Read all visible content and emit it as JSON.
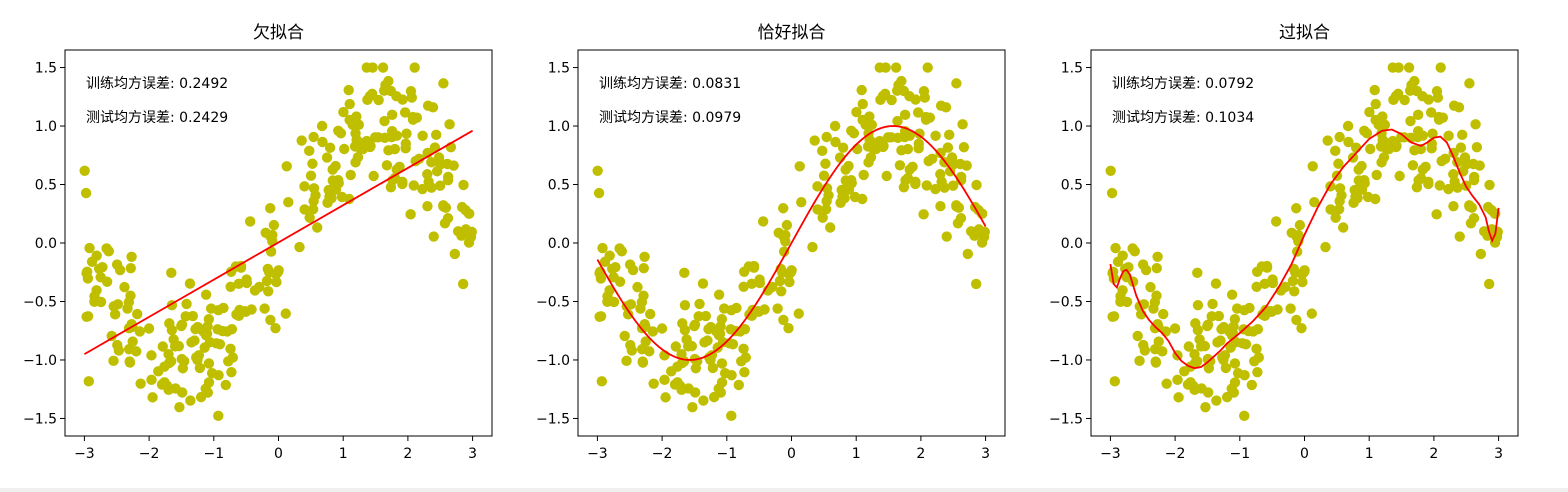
{
  "chart_data": [
    {
      "type": "scatter",
      "title": "欠拟合",
      "xlim": [
        -3.3,
        3.3
      ],
      "ylim": [
        -1.65,
        1.65
      ],
      "xticks": [
        "−3",
        "−2",
        "−1",
        "0",
        "1",
        "2",
        "3"
      ],
      "yticks": [
        "−1.5",
        "−1.0",
        "−0.5",
        "0.0",
        "0.5",
        "1.0",
        "1.5"
      ],
      "annotations": [
        "训练均方误差: 0.2492",
        "测试均方误差: 0.2429"
      ],
      "fit": {
        "kind": "linear",
        "x_start": -3,
        "x_end": 3,
        "y_start": -0.95,
        "y_end": 0.96
      },
      "scatter_color": "#bfbf00",
      "fit_color": "#ff0000"
    },
    {
      "type": "scatter",
      "title": "恰好拟合",
      "xlim": [
        -3.3,
        3.3
      ],
      "ylim": [
        -1.65,
        1.65
      ],
      "xticks": [
        "−3",
        "−2",
        "−1",
        "0",
        "1",
        "2",
        "3"
      ],
      "yticks": [
        "−1.5",
        "−1.0",
        "−0.5",
        "0.0",
        "0.5",
        "1.0",
        "1.5"
      ],
      "annotations": [
        "训练均方误差: 0.0831",
        "测试均方误差: 0.0979"
      ],
      "fit": {
        "kind": "sine"
      },
      "scatter_color": "#bfbf00",
      "fit_color": "#ff0000"
    },
    {
      "type": "scatter",
      "title": "过拟合",
      "xlim": [
        -3.3,
        3.3
      ],
      "ylim": [
        -1.65,
        1.65
      ],
      "xticks": [
        "−3",
        "−2",
        "−1",
        "0",
        "1",
        "2",
        "3"
      ],
      "yticks": [
        "−1.5",
        "−1.0",
        "−0.5",
        "0.0",
        "0.5",
        "1.0",
        "1.5"
      ],
      "annotations": [
        "训练均方误差: 0.0792",
        "测试均方误差: 0.1034"
      ],
      "fit": {
        "kind": "polyline",
        "points": [
          [
            -3.0,
            -0.18
          ],
          [
            -2.95,
            -0.35
          ],
          [
            -2.9,
            -0.38
          ],
          [
            -2.85,
            -0.3
          ],
          [
            -2.8,
            -0.24
          ],
          [
            -2.75,
            -0.23
          ],
          [
            -2.7,
            -0.27
          ],
          [
            -2.65,
            -0.36
          ],
          [
            -2.6,
            -0.45
          ],
          [
            -2.5,
            -0.58
          ],
          [
            -2.4,
            -0.66
          ],
          [
            -2.3,
            -0.72
          ],
          [
            -2.2,
            -0.77
          ],
          [
            -2.1,
            -0.84
          ],
          [
            -2.0,
            -0.94
          ],
          [
            -1.9,
            -1.01
          ],
          [
            -1.8,
            -1.05
          ],
          [
            -1.7,
            -1.07
          ],
          [
            -1.6,
            -1.06
          ],
          [
            -1.5,
            -1.02
          ],
          [
            -1.4,
            -0.97
          ],
          [
            -1.3,
            -0.92
          ],
          [
            -1.2,
            -0.86
          ],
          [
            -1.0,
            -0.77
          ],
          [
            -0.8,
            -0.67
          ],
          [
            -0.6,
            -0.55
          ],
          [
            -0.4,
            -0.38
          ],
          [
            -0.2,
            -0.18
          ],
          [
            0.0,
            0.07
          ],
          [
            0.2,
            0.3
          ],
          [
            0.4,
            0.5
          ],
          [
            0.6,
            0.65
          ],
          [
            0.8,
            0.77
          ],
          [
            1.0,
            0.89
          ],
          [
            1.2,
            0.96
          ],
          [
            1.35,
            0.97
          ],
          [
            1.5,
            0.93
          ],
          [
            1.65,
            0.86
          ],
          [
            1.8,
            0.83
          ],
          [
            1.9,
            0.86
          ],
          [
            2.0,
            0.9
          ],
          [
            2.1,
            0.91
          ],
          [
            2.2,
            0.86
          ],
          [
            2.3,
            0.74
          ],
          [
            2.4,
            0.6
          ],
          [
            2.5,
            0.48
          ],
          [
            2.6,
            0.4
          ],
          [
            2.7,
            0.33
          ],
          [
            2.8,
            0.22
          ],
          [
            2.85,
            0.1
          ],
          [
            2.9,
            0.02
          ],
          [
            2.95,
            0.08
          ],
          [
            3.0,
            0.3
          ]
        ]
      },
      "scatter_color": "#bfbf00",
      "fit_color": "#ff0000"
    }
  ]
}
